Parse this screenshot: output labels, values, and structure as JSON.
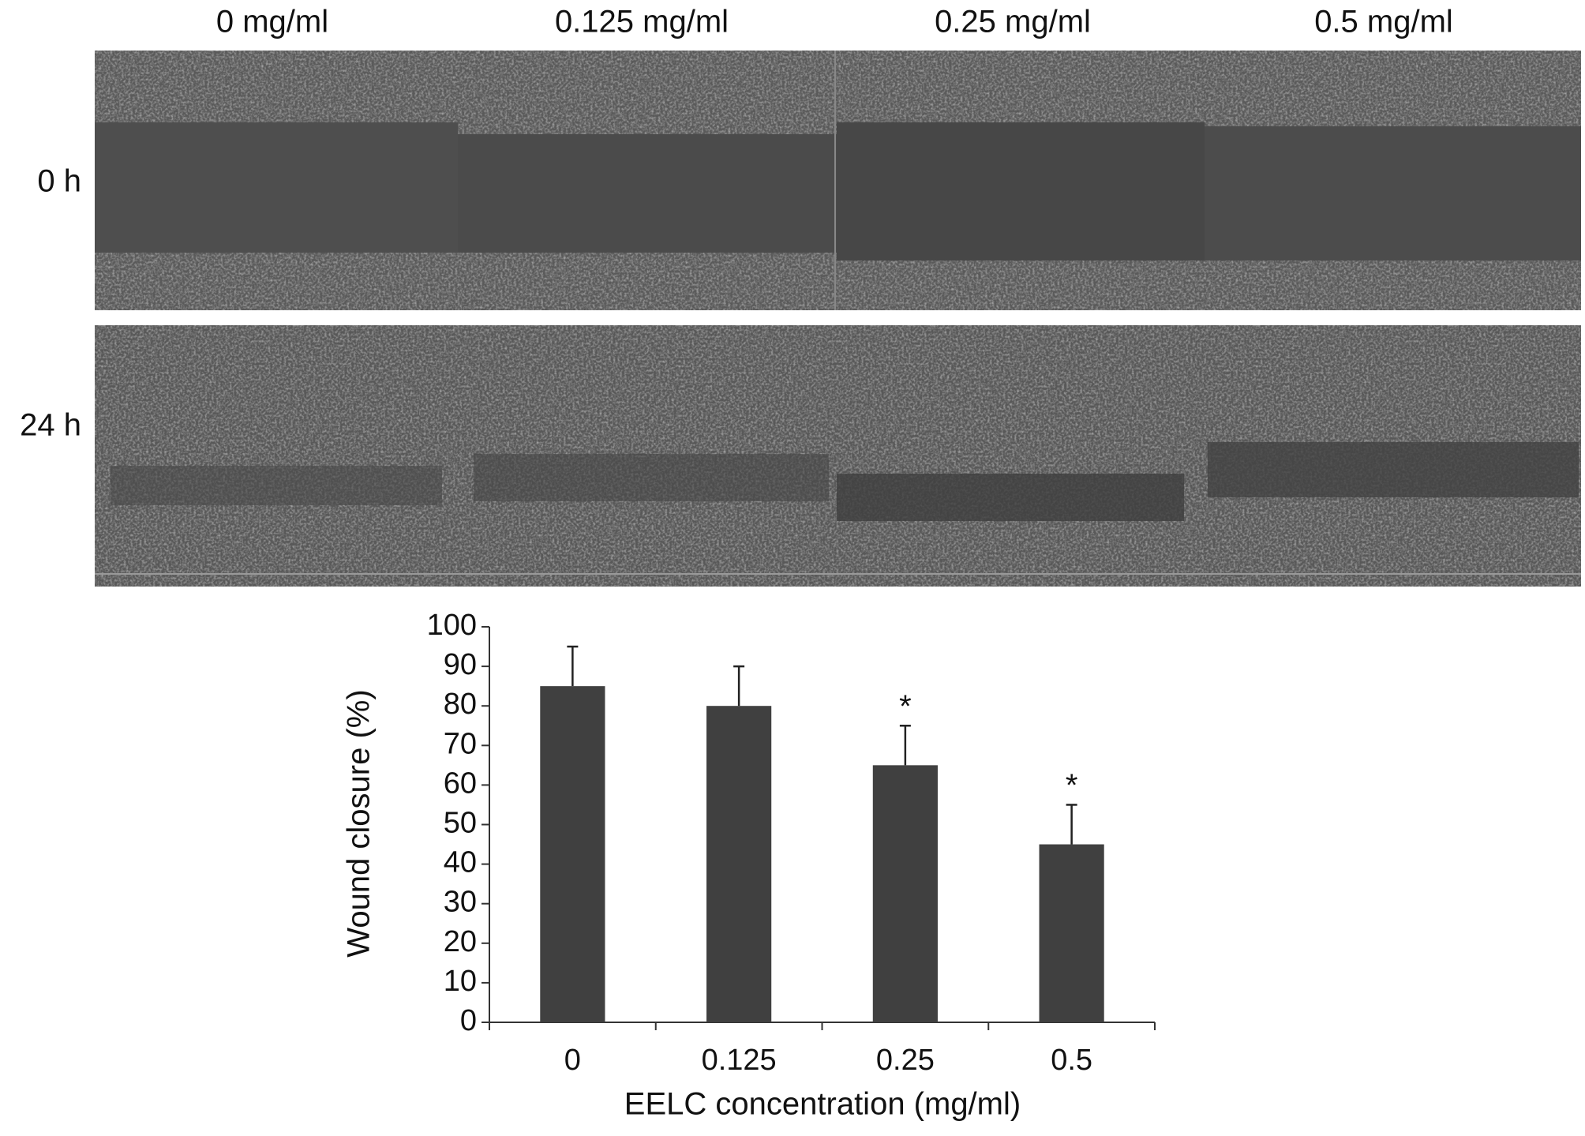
{
  "panel": {
    "columns": [
      "0 mg/ml",
      "0.125 mg/ml",
      "0.25 mg/ml",
      "0.5 mg/ml"
    ],
    "rows": [
      "0 h",
      "24 h"
    ]
  },
  "chart_data": {
    "type": "bar",
    "categories": [
      "0",
      "0.125",
      "0.25",
      "0.5"
    ],
    "values": [
      85,
      80,
      65,
      45
    ],
    "errors": [
      10,
      10,
      10,
      10
    ],
    "annotations": [
      {
        "category": "0.25",
        "text": "*"
      },
      {
        "category": "0.5",
        "text": "*"
      }
    ],
    "color": "#404040",
    "xlabel": "EELC concentration (mg/ml)",
    "ylabel": "Wound closure (%)",
    "ylim": [
      0,
      100
    ],
    "yticks": [
      0,
      10,
      20,
      30,
      40,
      50,
      60,
      70,
      80,
      90,
      100
    ],
    "grid": false
  }
}
